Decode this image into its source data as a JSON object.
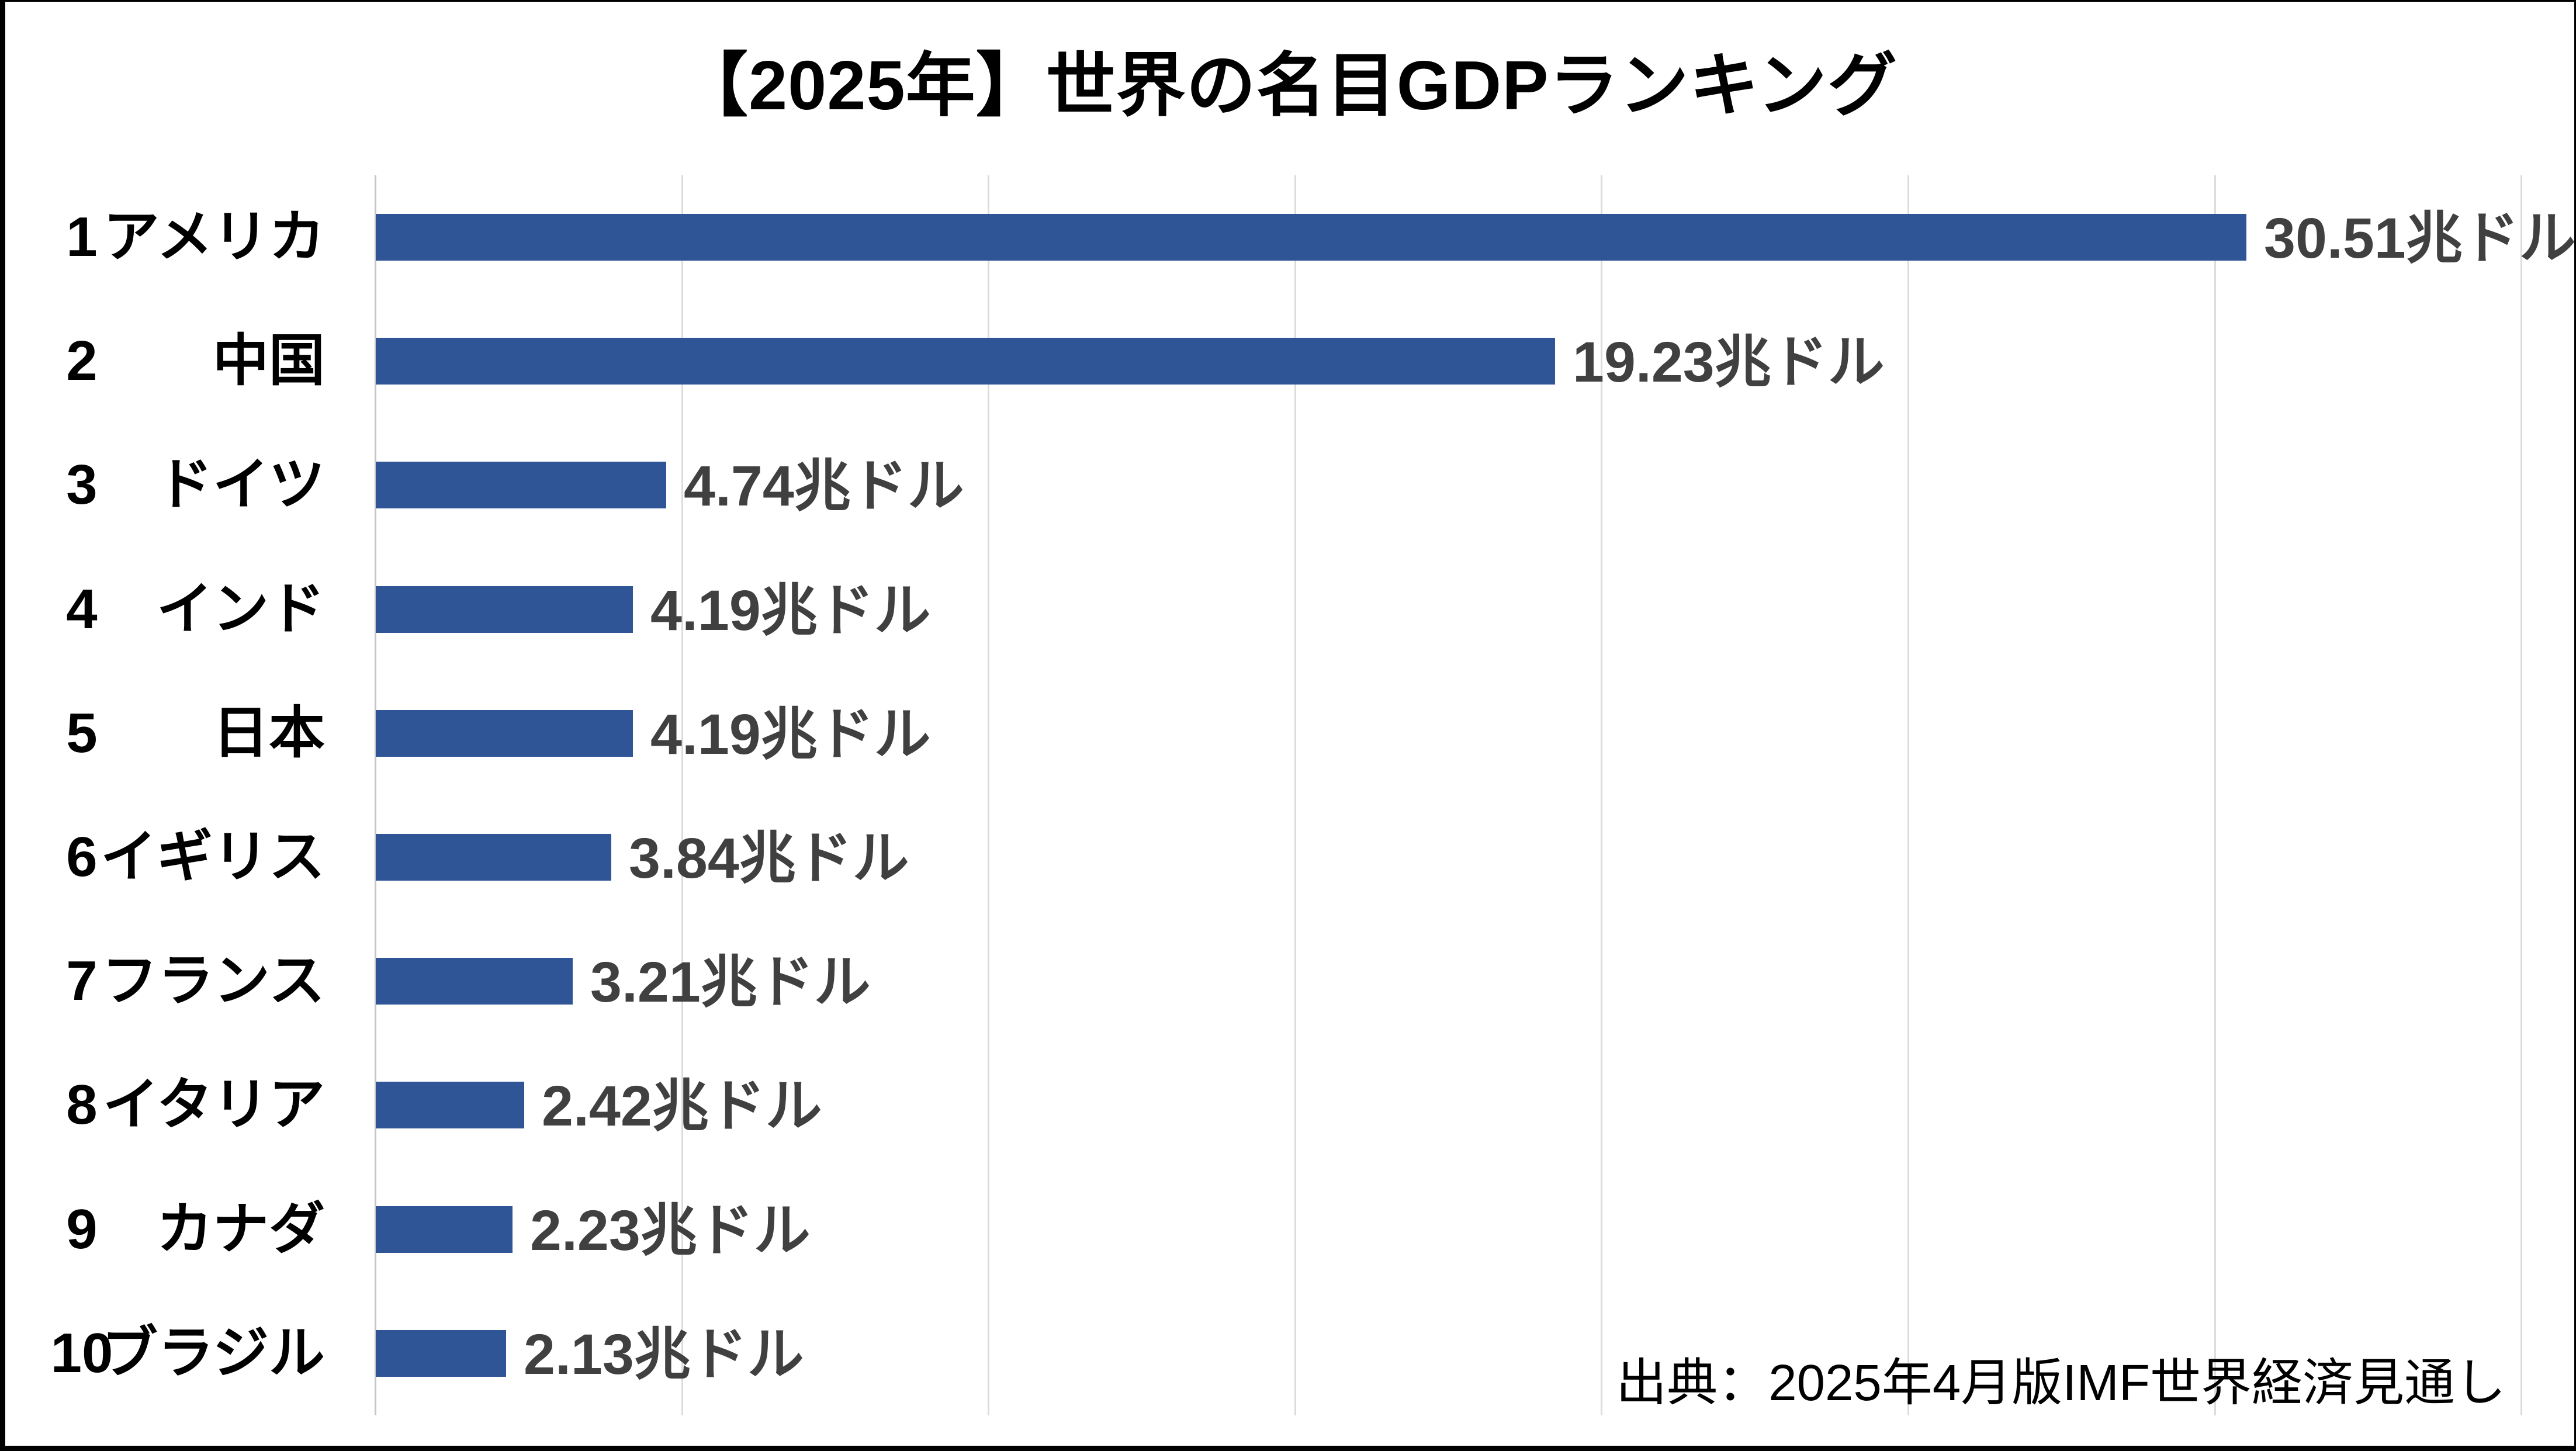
{
  "title": "【2025年】世界の名目GDPランキング",
  "source_note": "出典：2025年4月版IMF世界経済見通し",
  "chart_data": {
    "type": "bar",
    "orientation": "horizontal",
    "title": "【2025年】世界の名目GDPランキング",
    "unit": "兆ドル",
    "categories": [
      "アメリカ",
      "中国",
      "ドイツ",
      "インド",
      "日本",
      "イギリス",
      "フランス",
      "イタリア",
      "カナダ",
      "ブラジル"
    ],
    "values": [
      30.51,
      19.23,
      4.74,
      4.19,
      4.19,
      3.84,
      3.21,
      2.42,
      2.23,
      2.13
    ],
    "rows": [
      {
        "rank": "1",
        "country": "アメリカ",
        "value": 30.51,
        "label": "30.51兆ドル"
      },
      {
        "rank": "2",
        "country": "中国",
        "value": 19.23,
        "label": "19.23兆ドル"
      },
      {
        "rank": "3",
        "country": "ドイツ",
        "value": 4.74,
        "label": "4.74兆ドル"
      },
      {
        "rank": "4",
        "country": "インド",
        "value": 4.19,
        "label": "4.19兆ドル"
      },
      {
        "rank": "5",
        "country": "日本",
        "value": 4.19,
        "label": "4.19兆ドル"
      },
      {
        "rank": "6",
        "country": "イギリス",
        "value": 3.84,
        "label": "3.84兆ドル"
      },
      {
        "rank": "7",
        "country": "フランス",
        "value": 3.21,
        "label": "3.21兆ドル"
      },
      {
        "rank": "8",
        "country": "イタリア",
        "value": 2.42,
        "label": "2.42兆ドル"
      },
      {
        "rank": "9",
        "country": "カナダ",
        "value": 2.23,
        "label": "2.23兆ドル"
      },
      {
        "rank": "10",
        "country": "ブラジル",
        "value": 2.13,
        "label": "2.13兆ドル"
      }
    ],
    "axis": {
      "min": 0,
      "max": 35.9,
      "gridline_interval": 5,
      "gridline_count": 7,
      "tick_labels_shown": false
    },
    "grid": true,
    "legend": "none",
    "source": "出典：2025年4月版IMF世界経済見通し",
    "colors": {
      "bar": "#2F5597",
      "value_text": "#404040",
      "label_text": "#000000",
      "gridline": "#DCDCDC",
      "axis_line": "#C6C6C6",
      "border": "#000000",
      "background": "#FFFFFF"
    }
  }
}
